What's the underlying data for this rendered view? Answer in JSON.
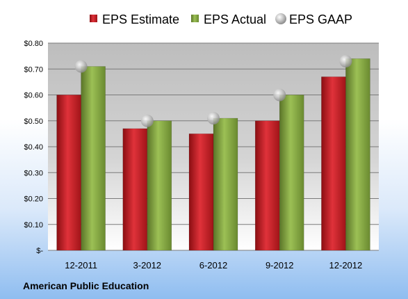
{
  "chart_data": {
    "type": "bar",
    "categories": [
      "12-2011",
      "3-2012",
      "6-2012",
      "9-2012",
      "12-2012"
    ],
    "series": [
      {
        "name": "EPS Estimate",
        "kind": "bar",
        "color": "#c0191f",
        "values": [
          0.6,
          0.47,
          0.45,
          0.5,
          0.67
        ]
      },
      {
        "name": "EPS Actual",
        "kind": "bar",
        "color": "#7a9a3a",
        "values": [
          0.71,
          0.5,
          0.51,
          0.6,
          0.74
        ]
      },
      {
        "name": "EPS GAAP",
        "kind": "marker",
        "color": "#a8a8a8",
        "values": [
          0.71,
          0.5,
          0.51,
          0.6,
          0.73
        ]
      }
    ],
    "ylim": [
      0,
      0.8
    ],
    "yticks": [
      0,
      0.1,
      0.2,
      0.3,
      0.4,
      0.5,
      0.6,
      0.7,
      0.8
    ],
    "ytick_labels": [
      "$-",
      "$0.10",
      "$0.20",
      "$0.30",
      "$0.40",
      "$0.50",
      "$0.60",
      "$0.70",
      "$0.80"
    ],
    "legend_position": "top",
    "grid": true
  },
  "source_label": "American Public Education"
}
